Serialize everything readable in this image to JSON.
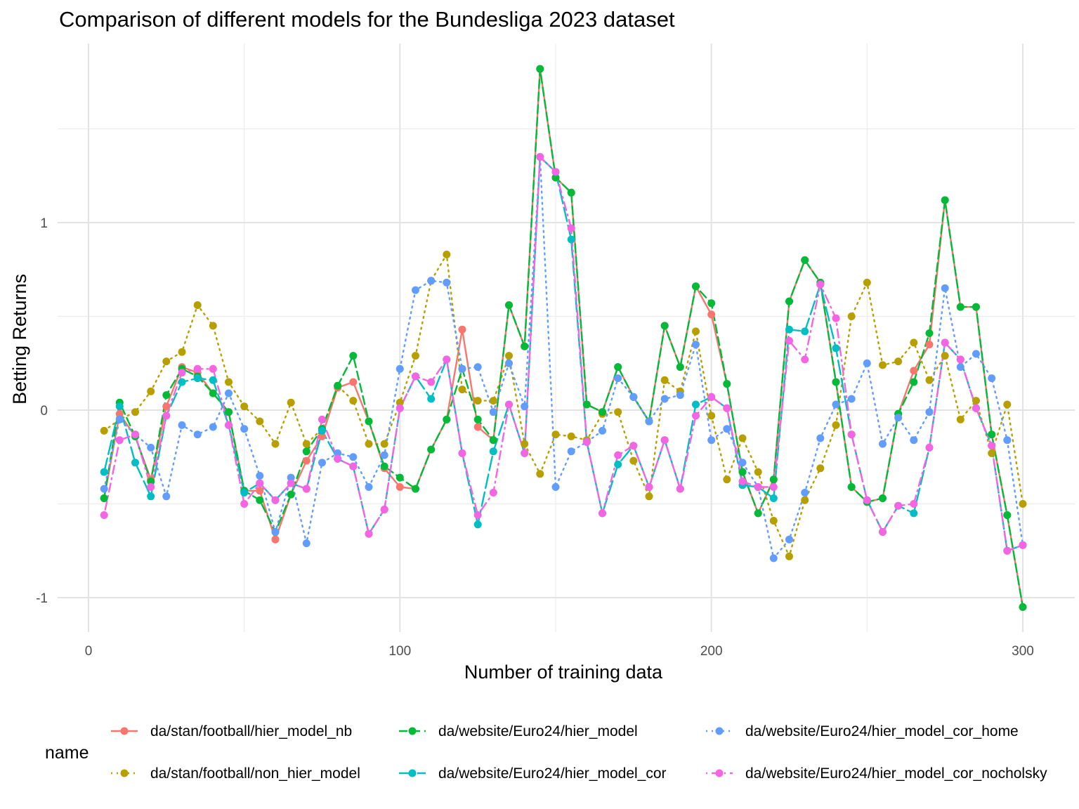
{
  "chart_data": {
    "type": "line",
    "title": "Comparison of different models for the Bundesliga 2023 dataset",
    "xlabel": "Number of training data",
    "ylabel": "Betting Returns",
    "xlim": [
      0,
      310
    ],
    "ylim": [
      -1.2,
      1.95
    ],
    "x_ticks": [
      0,
      100,
      200,
      300
    ],
    "y_ticks": [
      -1,
      0,
      1
    ],
    "grid": true,
    "legend_title": "name",
    "legend_position": "bottom",
    "x": [
      5,
      10,
      15,
      20,
      25,
      30,
      35,
      40,
      45,
      50,
      55,
      60,
      65,
      70,
      75,
      80,
      85,
      90,
      95,
      100,
      105,
      110,
      115,
      120,
      125,
      130,
      135,
      140,
      145,
      150,
      155,
      160,
      165,
      170,
      175,
      180,
      185,
      190,
      195,
      200,
      205,
      210,
      215,
      220,
      225,
      230,
      235,
      240,
      245,
      250,
      255,
      260,
      265,
      270,
      275,
      280,
      285,
      290,
      295,
      300
    ],
    "series": [
      {
        "name": "da/stan/football/hier_model_nb",
        "color": "#F8766D",
        "dash": "solid",
        "values": [
          -0.47,
          -0.02,
          -0.14,
          -0.37,
          0.02,
          0.23,
          0.2,
          0.09,
          -0.01,
          -0.43,
          -0.43,
          -0.69,
          -0.45,
          -0.27,
          -0.14,
          0.12,
          0.15,
          -0.06,
          -0.31,
          -0.41,
          -0.42,
          -0.21,
          -0.05,
          0.43,
          -0.09,
          -0.16,
          0.56,
          0.34,
          1.82,
          1.24,
          1.16,
          0.03,
          -0.01,
          0.23,
          0.07,
          -0.06,
          0.45,
          0.23,
          0.66,
          0.51,
          0.14,
          -0.33,
          -0.55,
          -0.37,
          0.58,
          0.8,
          0.68,
          0.15,
          -0.41,
          -0.49,
          -0.47,
          -0.02,
          0.21,
          0.35,
          1.12,
          0.55,
          0.55,
          -0.13,
          -0.56,
          -1.05
        ]
      },
      {
        "name": "da/stan/football/non_hier_model",
        "color": "#B79F00",
        "dash": "dotted",
        "values": [
          -0.11,
          -0.05,
          -0.01,
          0.1,
          0.26,
          0.31,
          0.56,
          0.45,
          0.15,
          0.02,
          -0.06,
          -0.18,
          0.04,
          -0.18,
          -0.1,
          0.13,
          0.05,
          -0.18,
          -0.18,
          0.04,
          0.29,
          0.69,
          0.83,
          0.11,
          0.05,
          0.05,
          0.29,
          -0.18,
          -0.34,
          -0.13,
          -0.14,
          -0.16,
          -0.02,
          -0.01,
          -0.27,
          -0.46,
          0.16,
          0.1,
          0.42,
          -0.03,
          -0.37,
          -0.15,
          -0.33,
          -0.59,
          -0.78,
          -0.48,
          -0.31,
          -0.08,
          0.5,
          0.68,
          0.24,
          0.26,
          0.36,
          0.16,
          0.29,
          -0.05,
          0.05,
          -0.23,
          0.03,
          -0.5
        ]
      },
      {
        "name": "da/website/Euro24/hier_model",
        "color": "#00BA38",
        "dash": "dashed",
        "values": [
          -0.47,
          0.04,
          -0.14,
          -0.38,
          0.08,
          0.22,
          0.18,
          0.09,
          -0.01,
          -0.43,
          -0.48,
          -0.65,
          -0.45,
          -0.22,
          -0.1,
          0.13,
          0.29,
          -0.06,
          -0.3,
          -0.36,
          -0.42,
          -0.21,
          -0.05,
          0.22,
          -0.05,
          -0.16,
          0.56,
          0.34,
          1.82,
          1.24,
          1.16,
          0.03,
          -0.01,
          0.23,
          0.07,
          -0.06,
          0.45,
          0.23,
          0.66,
          0.57,
          0.14,
          -0.33,
          -0.55,
          -0.37,
          0.58,
          0.8,
          0.68,
          0.15,
          -0.41,
          -0.49,
          -0.47,
          -0.02,
          0.15,
          0.41,
          1.12,
          0.55,
          0.55,
          -0.13,
          -0.56,
          -1.05
        ]
      },
      {
        "name": "da/website/Euro24/hier_model_cor",
        "color": "#00BFC4",
        "dash": "longdash",
        "values": [
          -0.33,
          0.02,
          -0.28,
          -0.46,
          -0.03,
          0.15,
          0.17,
          0.16,
          -0.08,
          -0.44,
          -0.39,
          -0.48,
          -0.39,
          -0.42,
          -0.11,
          -0.26,
          -0.3,
          -0.66,
          -0.53,
          0.01,
          0.18,
          0.06,
          0.27,
          -0.23,
          -0.61,
          -0.22,
          0.03,
          -0.23,
          1.35,
          1.27,
          0.91,
          -0.17,
          -0.55,
          -0.29,
          -0.19,
          -0.41,
          -0.16,
          -0.42,
          0.03,
          0.07,
          0.01,
          -0.4,
          -0.41,
          -0.47,
          0.43,
          0.42,
          0.67,
          0.33,
          -0.13,
          -0.48,
          -0.65,
          -0.51,
          -0.55,
          -0.2,
          0.36,
          0.27,
          0.01,
          -0.19,
          -0.75,
          -0.72
        ]
      },
      {
        "name": "da/website/Euro24/hier_model_cor_home",
        "color": "#619CFF",
        "dash": "dotted",
        "values": [
          -0.42,
          -0.05,
          -0.13,
          -0.2,
          -0.46,
          -0.08,
          -0.13,
          -0.09,
          0.09,
          -0.1,
          -0.35,
          -0.65,
          -0.36,
          -0.71,
          -0.28,
          -0.23,
          -0.25,
          -0.41,
          -0.24,
          0.22,
          0.64,
          0.69,
          0.68,
          0.22,
          0.23,
          -0.01,
          0.25,
          0.02,
          1.35,
          -0.41,
          -0.22,
          -0.17,
          -0.11,
          0.17,
          0.07,
          -0.06,
          0.06,
          0.08,
          0.35,
          -0.16,
          -0.1,
          -0.28,
          -0.41,
          -0.79,
          -0.69,
          -0.44,
          -0.15,
          0.03,
          0.06,
          0.25,
          -0.18,
          -0.04,
          -0.16,
          -0.01,
          0.65,
          0.23,
          0.3,
          0.17,
          -0.16,
          -0.72
        ]
      },
      {
        "name": "da/website/Euro24/hier_model_cor_nocholsky",
        "color": "#F564E3",
        "dash": "dotdash",
        "values": [
          -0.56,
          -0.16,
          -0.13,
          -0.41,
          -0.03,
          0.2,
          0.22,
          0.22,
          -0.08,
          -0.5,
          -0.39,
          -0.48,
          -0.39,
          -0.42,
          -0.05,
          -0.26,
          -0.3,
          -0.66,
          -0.53,
          0.01,
          0.18,
          0.15,
          0.27,
          -0.23,
          -0.56,
          -0.44,
          0.03,
          -0.23,
          1.35,
          1.27,
          0.97,
          -0.17,
          -0.55,
          -0.24,
          -0.19,
          -0.41,
          -0.16,
          -0.42,
          -0.03,
          0.07,
          0.01,
          -0.38,
          -0.41,
          -0.41,
          0.37,
          0.27,
          0.67,
          0.49,
          -0.13,
          -0.48,
          -0.65,
          -0.51,
          -0.5,
          -0.2,
          0.36,
          0.27,
          0.01,
          -0.19,
          -0.75,
          -0.72
        ]
      }
    ]
  }
}
